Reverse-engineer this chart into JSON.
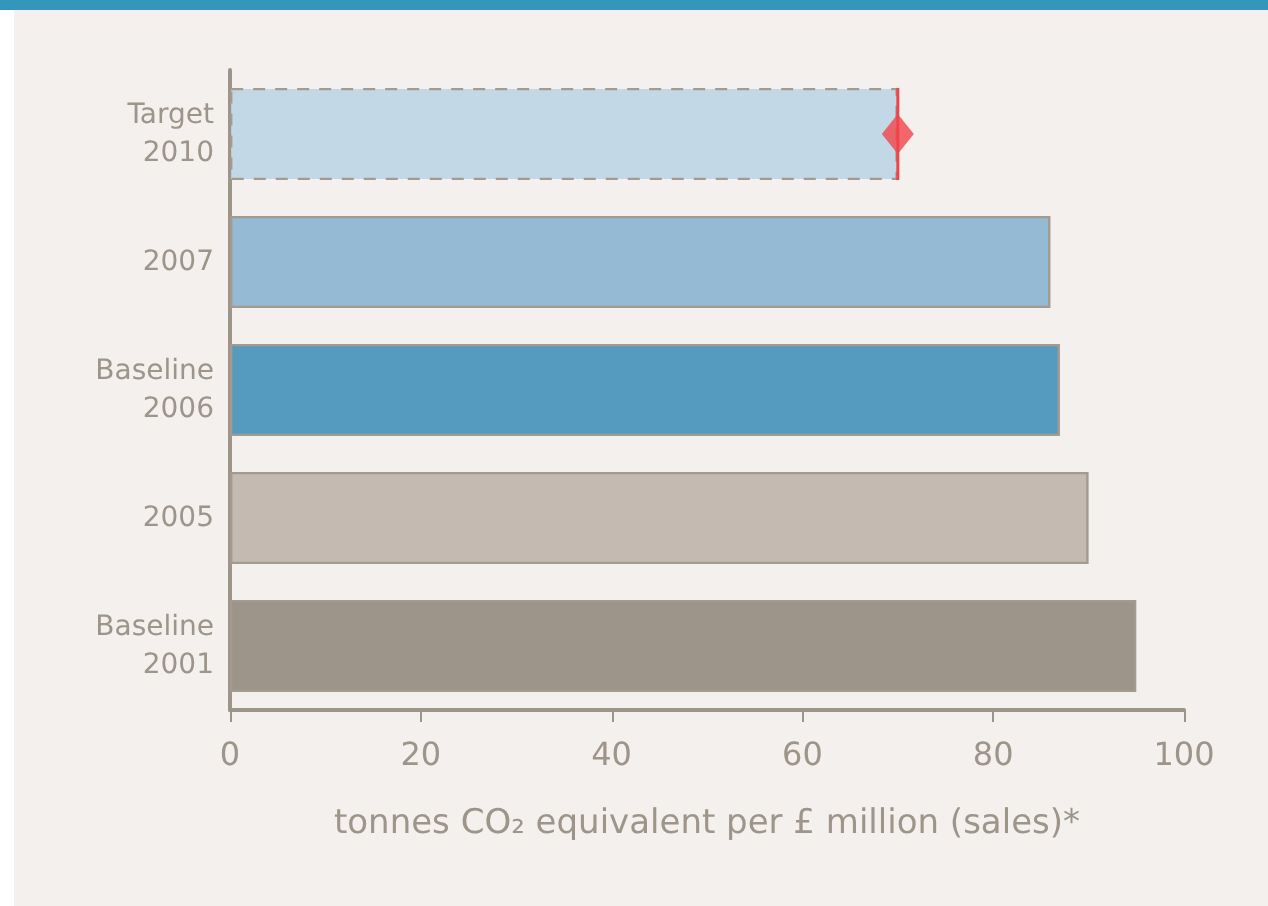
{
  "chart_data": {
    "type": "bar",
    "orientation": "horizontal",
    "stacked": true,
    "categories": [
      "Target\n2010",
      "2007",
      "Baseline\n2006",
      "2005",
      "Baseline\n2001"
    ],
    "series": [
      {
        "values": [
          70,
          null,
          null,
          null,
          null
        ],
        "colors": [
          "#c3d8e6",
          null,
          null,
          null,
          null
        ],
        "line_style": "dashed"
      },
      {
        "values": [
          null,
          86,
          87,
          90,
          95
        ],
        "colors": [
          null,
          "#94bad4",
          "#559bbf",
          "#c4bab1",
          "#9e958a"
        ],
        "line_style": "solid"
      },
      {
        "type": "scatter",
        "x": [
          "Target\n2010"
        ],
        "values": [
          70
        ],
        "color": "#f2434a",
        "marker": "diamond"
      }
    ],
    "xlabel": "tonnes CO₂ equivalent per £ million (sales)*",
    "ref_lines": [
      {
        "axis": "x",
        "value": 70,
        "color": "#f2434a"
      }
    ],
    "xlim": [
      0,
      100
    ],
    "xticks": [
      0,
      20,
      40,
      60,
      80,
      100
    ],
    "grid": false
  }
}
